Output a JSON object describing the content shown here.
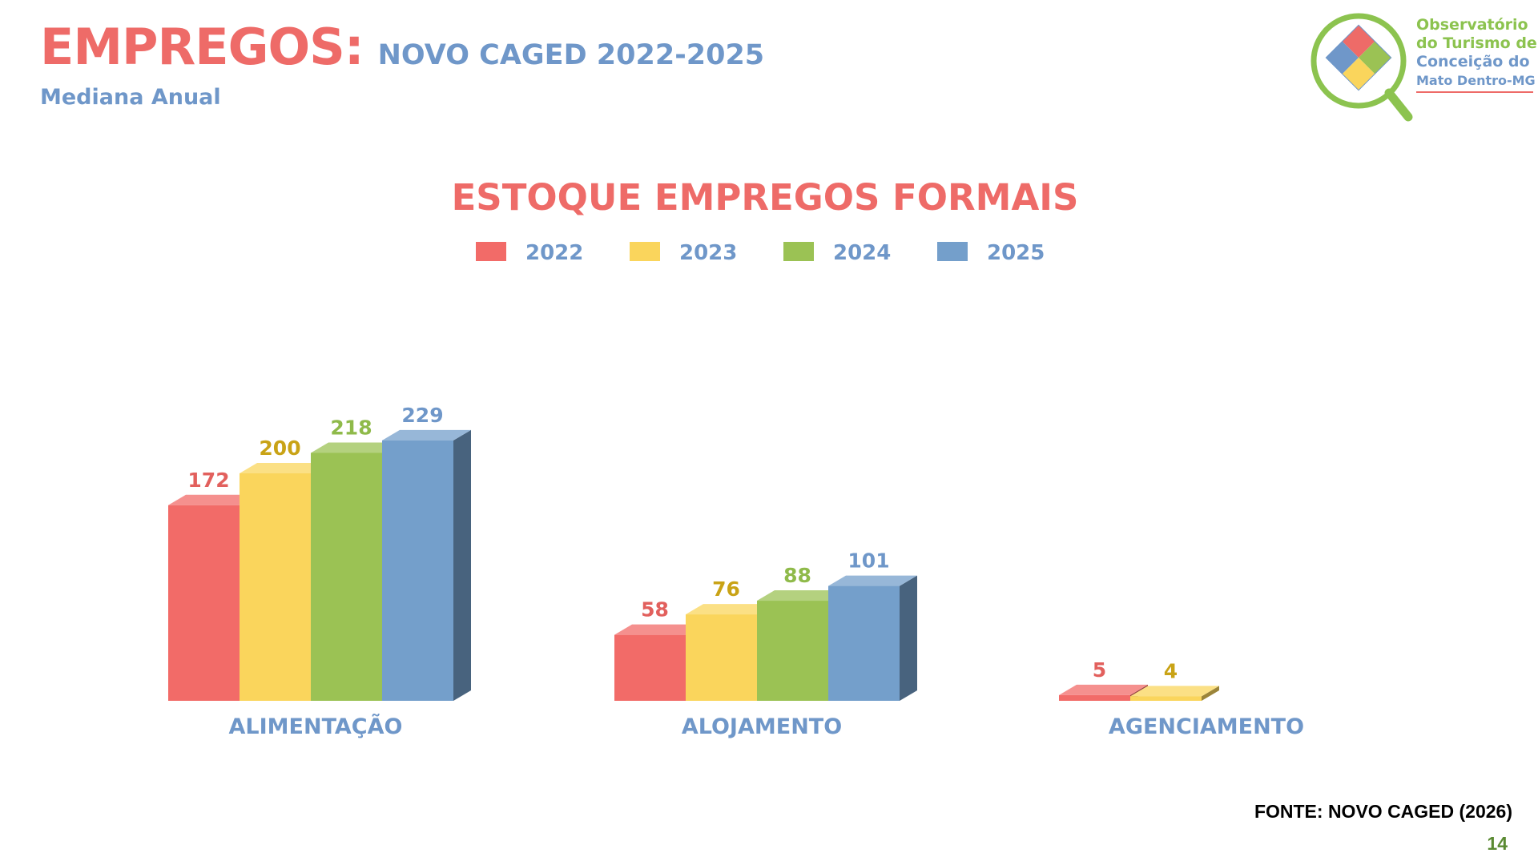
{
  "header": {
    "title": "EMPREGOS:",
    "subtitle": "NOVO CAGED 2022-2025",
    "caption": "Mediana Anual"
  },
  "logo": {
    "line1": "Observatório",
    "line2": "do Turismo de",
    "line3": "Conceição do",
    "line4": "Mato Dentro-MG"
  },
  "colors": {
    "2022": "#f26b68",
    "2023": "#fad55c",
    "2024": "#9bc254",
    "2025": "#749fcb",
    "title_red": "#ee6b68",
    "label_blue": "#6f97c9"
  },
  "chart_data": {
    "type": "bar",
    "title": "ESTOQUE EMPREGOS FORMAIS",
    "categories": [
      "ALIMENTAÇÃO",
      "ALOJAMENTO",
      "AGENCIAMENTO"
    ],
    "series": [
      {
        "name": "2022",
        "values": [
          172,
          58,
          5
        ]
      },
      {
        "name": "2023",
        "values": [
          200,
          76,
          4
        ]
      },
      {
        "name": "2024",
        "values": [
          218,
          88,
          null
        ]
      },
      {
        "name": "2025",
        "values": [
          229,
          101,
          null
        ]
      }
    ],
    "legend_position": "top-center",
    "grid": false,
    "style": "3d-bars"
  },
  "footer": {
    "source": "FONTE: NOVO CAGED (2026)",
    "page": "14"
  }
}
